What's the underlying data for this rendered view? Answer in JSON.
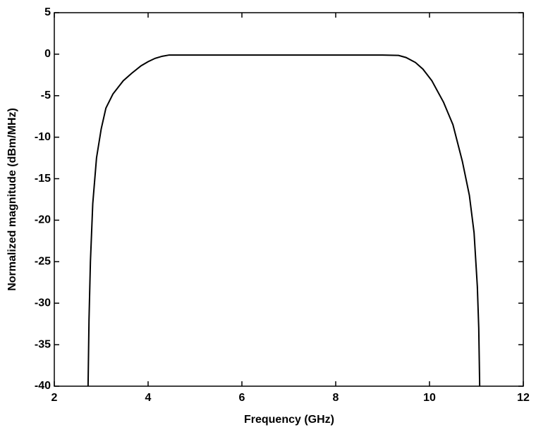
{
  "chart_data": {
    "type": "line",
    "x_label": "Frequency (GHz)",
    "y_label": "Normalized magnitude (dBm/MHz)",
    "xlim": [
      2,
      12
    ],
    "xticks": [
      2,
      4,
      6,
      8,
      10,
      12
    ],
    "ylim": [
      -40,
      5
    ],
    "yticks": [
      -40,
      -35,
      -30,
      -25,
      -20,
      -15,
      -10,
      -5,
      0,
      5
    ],
    "x": [
      2.72,
      2.74,
      2.77,
      2.82,
      2.9,
      3.0,
      3.1,
      3.25,
      3.47,
      3.65,
      3.85,
      4.0,
      4.15,
      4.3,
      4.45,
      5.0,
      6.0,
      7.0,
      8.0,
      9.0,
      9.34,
      9.5,
      9.7,
      9.86,
      10.05,
      10.3,
      10.5,
      10.7,
      10.85,
      10.95,
      11.02,
      11.05,
      11.07
    ],
    "series": [
      {
        "color": "#000000",
        "values": [
          -40,
          -32,
          -25,
          -18,
          -12.5,
          -9,
          -6.5,
          -4.8,
          -3.2,
          -2.3,
          -1.4,
          -0.9,
          -0.5,
          -0.25,
          -0.1,
          -0.1,
          -0.1,
          -0.1,
          -0.1,
          -0.1,
          -0.15,
          -0.4,
          -1.0,
          -1.8,
          -3.2,
          -5.8,
          -8.5,
          -12.9,
          -17,
          -21.5,
          -28,
          -33,
          -40
        ]
      }
    ]
  }
}
